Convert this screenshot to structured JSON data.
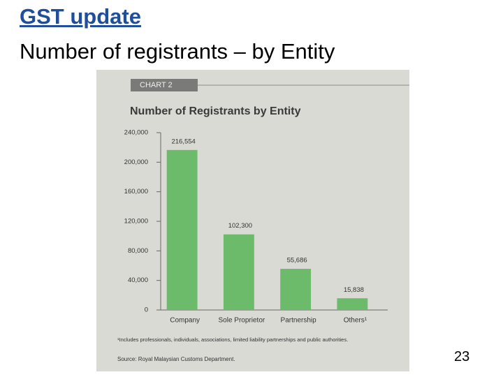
{
  "slide": {
    "title": "GST update",
    "subtitle": "Number of registrants – by Entity",
    "page_number": "23"
  },
  "chart_data": {
    "type": "bar",
    "label": "CHART 2",
    "title": "Number of Registrants by Entity",
    "categories": [
      "Company",
      "Sole Proprietor",
      "Partnership",
      "Others¹"
    ],
    "values": [
      216554,
      102300,
      55686,
      15838
    ],
    "value_labels": [
      "216,554",
      "102,300",
      "55,686",
      "15,838"
    ],
    "color": "#6cbb6a",
    "ylim": [
      0,
      240000
    ],
    "yticks": [
      0,
      {
        "value": 40000,
        "label": "40,000"
      },
      {
        "value": 80000,
        "label": "80,000"
      },
      {
        "value": 120000,
        "label": "120,000"
      },
      {
        "value": 160000,
        "label": "160,000"
      },
      {
        "value": 200000,
        "label": "200,000"
      },
      {
        "value": 240000,
        "label": "240,000"
      }
    ],
    "footnote": "¹Includes professionals, individuals, associations, limited liability partnerships and public authorities.",
    "source": "Source: Royal Malaysian Customs Department."
  }
}
